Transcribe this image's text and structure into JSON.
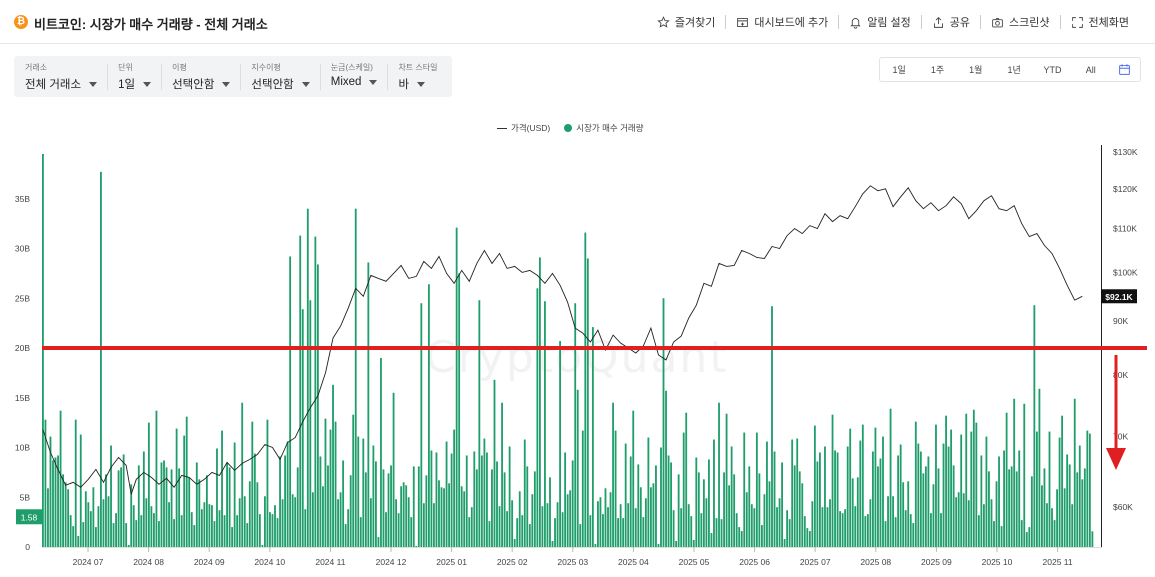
{
  "header": {
    "title": "비트코인: 시장가 매수 거래량 - 전체 거래소",
    "coin_icon": "₿",
    "actions": [
      {
        "label": "즐겨찾기",
        "icon": "star-icon"
      },
      {
        "label": "대시보드에 추가",
        "icon": "dashboard-add-icon"
      },
      {
        "label": "알림 설정",
        "icon": "bell-icon"
      },
      {
        "label": "공유",
        "icon": "share-icon"
      },
      {
        "label": "스크린샷",
        "icon": "camera-icon"
      },
      {
        "label": "전체화면",
        "icon": "fullscreen-icon"
      }
    ]
  },
  "filters": [
    {
      "label": "거래소",
      "value": "전체 거래소"
    },
    {
      "label": "단위",
      "value": "1일"
    },
    {
      "label": "이평",
      "value": "선택안함"
    },
    {
      "label": "지수이평",
      "value": "선택안함"
    },
    {
      "label": "눈금(스케일)",
      "value": "Mixed"
    },
    {
      "label": "차트 스타일",
      "value": "바"
    }
  ],
  "ranges": [
    "1일",
    "1주",
    "1월",
    "1년",
    "YTD",
    "All"
  ],
  "legend": {
    "price": "가격(USD)",
    "volume": "시장가 매수 거래량"
  },
  "watermark": "CryptoQuant",
  "colors": {
    "bar": "#1f9d6b",
    "price_line": "#222222",
    "overlay_line": "#e02020",
    "arrow": "#e02020"
  },
  "chart_data": {
    "type": "bar",
    "x_ticks": [
      "2024 07",
      "2024 08",
      "2024 09",
      "2024 10",
      "2024 11",
      "2024 12",
      "2025 01",
      "2025 02",
      "2025 03",
      "2025 04",
      "2025 05",
      "2025 06",
      "2025 07",
      "2025 08",
      "2025 09",
      "2025 10",
      "2025 11"
    ],
    "left_axis": {
      "ticks": [
        "0",
        "5B",
        "10B",
        "15B",
        "20B",
        "25B",
        "30B",
        "35B"
      ],
      "range": [
        0,
        39.5
      ]
    },
    "right_axis": {
      "ticks": [
        "$60K",
        "70K",
        "80K",
        "90K",
        "$100K",
        "$110K",
        "$120K",
        "$130K"
      ],
      "scale": "log",
      "range": [
        55000,
        130000
      ]
    },
    "current_volume_label": "1.58",
    "current_price_label": "$92.1K",
    "horizontal_line_value": 20,
    "price_path": [
      [
        0,
        11.8
      ],
      [
        3,
        9.5
      ],
      [
        6,
        7.8
      ],
      [
        9,
        6.2
      ],
      [
        12,
        6.5
      ],
      [
        15,
        6.0
      ],
      [
        18,
        6.8
      ],
      [
        21,
        7.8
      ],
      [
        24,
        6.5
      ],
      [
        27,
        8.0
      ],
      [
        30,
        9.0
      ],
      [
        33,
        8.2
      ],
      [
        35,
        5.3
      ],
      [
        37,
        6.8
      ],
      [
        40,
        7.5
      ],
      [
        43,
        7.0
      ],
      [
        46,
        6.3
      ],
      [
        49,
        6.9
      ],
      [
        52,
        6.0
      ],
      [
        55,
        7.2
      ],
      [
        58,
        7.0
      ],
      [
        61,
        6.3
      ],
      [
        64,
        6.8
      ],
      [
        67,
        7.5
      ],
      [
        70,
        7.2
      ],
      [
        73,
        8.5
      ],
      [
        76,
        7.7
      ],
      [
        79,
        8.4
      ],
      [
        82,
        8.8
      ],
      [
        85,
        9.3
      ],
      [
        88,
        10.3
      ],
      [
        91,
        10.0
      ],
      [
        94,
        8.8
      ],
      [
        97,
        10.5
      ],
      [
        100,
        11.0
      ],
      [
        103,
        12.6
      ],
      [
        106,
        14.0
      ],
      [
        109,
        15.2
      ],
      [
        112,
        17.5
      ],
      [
        115,
        21.0
      ],
      [
        118,
        22.2
      ],
      [
        121,
        24.0
      ],
      [
        124,
        26.0
      ],
      [
        127,
        25.2
      ],
      [
        130,
        27.3
      ],
      [
        133,
        27.0
      ],
      [
        136,
        26.7
      ],
      [
        139,
        27.5
      ],
      [
        142,
        28.3
      ],
      [
        145,
        27.0
      ],
      [
        148,
        27.2
      ],
      [
        151,
        28.7
      ],
      [
        154,
        28.0
      ],
      [
        157,
        29.2
      ],
      [
        160,
        27.5
      ],
      [
        163,
        26.5
      ],
      [
        166,
        27.8
      ],
      [
        169,
        26.7
      ],
      [
        172,
        28.5
      ],
      [
        175,
        29.8
      ],
      [
        178,
        28.5
      ],
      [
        181,
        29.5
      ],
      [
        184,
        28.0
      ],
      [
        187,
        28.2
      ],
      [
        190,
        27.6
      ],
      [
        193,
        27.8
      ],
      [
        196,
        27.3
      ],
      [
        199,
        26.5
      ],
      [
        202,
        27.5
      ],
      [
        205,
        26.3
      ],
      [
        208,
        24.6
      ],
      [
        211,
        22.0
      ],
      [
        214,
        21.5
      ],
      [
        217,
        20.6
      ],
      [
        220,
        21.8
      ],
      [
        223,
        19.8
      ],
      [
        226,
        21.3
      ],
      [
        229,
        20.5
      ],
      [
        232,
        20.0
      ],
      [
        235,
        19.5
      ],
      [
        238,
        20.2
      ],
      [
        241,
        22.0
      ],
      [
        244,
        19.3
      ],
      [
        247,
        18.8
      ],
      [
        250,
        20.6
      ],
      [
        253,
        21.2
      ],
      [
        256,
        23.0
      ],
      [
        259,
        24.3
      ],
      [
        262,
        26.5
      ],
      [
        265,
        26.2
      ],
      [
        268,
        28.5
      ],
      [
        271,
        28.2
      ],
      [
        274,
        28.3
      ],
      [
        277,
        29.8
      ],
      [
        280,
        29.5
      ],
      [
        283,
        29.1
      ],
      [
        286,
        29.0
      ],
      [
        289,
        30.2
      ],
      [
        292,
        30.0
      ],
      [
        295,
        31.3
      ],
      [
        298,
        32.0
      ],
      [
        301,
        31.5
      ],
      [
        304,
        32.3
      ],
      [
        307,
        32.0
      ],
      [
        310,
        33.5
      ],
      [
        313,
        32.7
      ],
      [
        316,
        33.3
      ],
      [
        319,
        33.0
      ],
      [
        322,
        34.2
      ],
      [
        325,
        35.5
      ],
      [
        328,
        36.3
      ],
      [
        331,
        35.8
      ],
      [
        334,
        36.0
      ],
      [
        337,
        34.2
      ],
      [
        340,
        35.2
      ],
      [
        343,
        36.1
      ],
      [
        346,
        34.8
      ],
      [
        349,
        34.0
      ],
      [
        352,
        34.6
      ],
      [
        355,
        33.8
      ],
      [
        358,
        34.3
      ],
      [
        361,
        35.2
      ],
      [
        364,
        34.5
      ],
      [
        367,
        33.0
      ],
      [
        370,
        33.8
      ],
      [
        373,
        34.8
      ],
      [
        376,
        35.3
      ],
      [
        379,
        34.0
      ],
      [
        382,
        33.8
      ],
      [
        385,
        34.3
      ],
      [
        388,
        32.5
      ],
      [
        391,
        31.2
      ],
      [
        394,
        31.5
      ],
      [
        397,
        30.3
      ],
      [
        400,
        29.5
      ],
      [
        403,
        28.0
      ],
      [
        406,
        26.3
      ],
      [
        409,
        24.8
      ],
      [
        412,
        25.2
      ]
    ],
    "volume_bars": [
      10.7,
      12.8,
      5.9,
      11.1,
      8.7,
      9.0,
      9.2,
      13.7,
      7.3,
      6.5,
      5.8,
      3.2,
      2.1,
      12.8,
      1.1,
      11.3,
      2.5,
      5.6,
      4.5,
      3.6,
      6.0,
      2.0,
      4.1,
      6.7,
      4.8,
      7.3,
      5.1,
      10.2,
      2.4,
      3.4,
      7.7,
      8.0,
      9.3,
      2.4,
      0.2,
      6.3,
      4.2,
      2.7,
      8.2,
      3.2,
      9.6,
      4.9,
      12.5,
      4.1,
      3.4,
      13.7,
      2.6,
      8.5,
      8.7,
      8.0,
      4.5,
      7.8,
      2.8,
      11.9,
      7.9,
      3.2,
      4.0,
      13.1,
      7.0,
      3.5,
      2.2,
      8.5,
      6.8,
      3.8,
      4.5,
      7.2,
      4.3,
      4.2,
      2.6,
      9.9,
      3.7,
      11.7,
      3.2,
      6.2,
      8.0,
      2.0,
      10.5,
      3.2,
      4.9,
      14.5,
      5.1,
      2.4,
      6.6,
      12.6,
      9.4,
      6.5,
      3.3,
      0.2,
      5.1,
      12.8,
      3.5,
      3.3,
      4.2,
      2.9,
      9.1,
      4.8,
      9.2,
      11.1,
      5.2,
      5.3,
      5.0,
      8.0,
      6.2,
      8.5,
      3.8,
      6.9,
      6.8,
      5.5,
      3.9,
      2.9,
      9.1,
      6.1,
      12.9,
      8.2,
      11.8,
      16.3,
      12.6,
      4.8,
      5.5,
      8.7,
      2.3,
      3.8,
      7.2,
      13.3,
      9.8,
      11.1,
      3.0,
      10.9,
      7.5,
      3.2,
      4.9,
      10.2,
      8.6,
      1.0,
      1.2,
      7.8,
      3.5,
      7.4,
      8.2,
      15.5,
      4.8,
      3.4,
      6.1,
      6.5,
      6.2,
      5.0,
      3.0,
      8.1,
      0.1,
      8.1,
      2.4,
      4.4,
      7.2,
      10.5,
      9.7,
      4.4,
      9.5,
      6.7,
      6.0,
      5.9,
      10.6,
      6.4,
      9.4,
      11.8,
      12.1,
      4.5,
      6.1,
      5.6,
      9.2,
      3.0,
      4.0,
      9.6,
      7.8,
      8.9,
      9.2,
      10.9,
      9.5,
      2.6,
      7.8,
      4.0,
      8.6,
      4.1,
      14.5,
      7.5,
      3.6,
      10.1,
      4.7,
      0.8,
      2.9,
      5.6,
      3.2,
      10.8,
      8.1,
      2.3,
      5.3,
      7.6,
      4.5,
      6.9,
      4.1,
      3.4,
      4.4,
      7.0,
      0.6,
      2.9,
      4.5,
      13.4,
      3.5,
      9.5,
      5.3,
      5.7,
      8.7,
      8.9,
      4.9,
      2.3,
      11.7,
      2.3,
      9.6,
      3.2,
      3.6,
      0.3,
      4.6,
      5.0,
      3.3,
      5.9,
      4.0,
      5.5,
      5.7,
      11.7,
      2.9,
      4.3,
      2.9,
      10.4,
      4.4,
      9.1,
      13.7,
      3.9,
      8.3,
      6.0,
      3.0,
      4.9,
      11.0,
      6.0,
      6.4,
      8.2,
      0.3,
      10.0,
      11.1,
      9.8,
      9.2,
      8.5,
      3.7,
      0.6,
      7.3,
      3.9,
      11.5,
      3.9,
      4.3,
      3.1,
      0.7,
      9.0,
      7.5,
      3.4,
      6.8,
      4.9,
      8.8,
      1.4,
      10.8,
      2.9,
      14.5,
      2.8,
      7.5,
      13.4,
      6.2,
      10.1,
      7.3,
      3.4,
      2.0,
      1.6,
      11.5,
      5.5,
      8.1,
      4.3,
      3.9,
      11.5,
      7.4,
      2.2,
      5.3,
      10.6,
      6.6,
      7.3,
      9.6,
      4.0,
      4.9,
      8.5,
      0.8,
      3.7,
      2.8,
      10.8,
      8.2,
      10.9,
      7.6,
      6.4,
      3.1,
      1.9,
      1.6,
      4.6,
      12.2,
      8.6,
      9.5,
      4.0,
      10.1,
      4.0,
      4.8,
      13.3,
      9.7,
      9.5,
      3.6,
      3.4,
      3.8,
      10.1,
      11.9,
      6.9,
      4.1,
      7.0,
      10.7,
      12.3,
      3.1,
      3.3,
      4.8,
      9.6,
      12.0,
      8.1,
      8.9,
      11.1,
      2.6,
      5.1,
      11.9,
      5.1,
      3.0,
      9.2,
      10.3,
      6.5,
      3.7,
      6.6,
      3.3,
      2.4,
      12.6,
      10.4,
      9.6,
      7.4,
      8.1,
      9.1,
      3.4,
      6.3,
      12.3,
      7.9,
      3.4,
      10.4,
      1.3,
      10.1,
      11.8,
      8.2,
      5.0,
      5.5,
      11.3,
      5.4,
      13.4,
      4.7,
      11.6,
      13.8,
      12.5,
      3.2,
      9.2,
      4.3,
      11.1,
      7.6,
      4.8,
      2.6,
      6.6,
      9.1,
      2.1,
      9.7,
      13.5,
      7.8,
      8.1,
      14.9,
      7.6,
      9.7,
      2.7,
      14.4,
      1.5,
      2.0,
      7.1,
      4.1,
      11.6,
      8.7,
      6.2,
      7.9,
      4.4,
      11.6,
      3.9,
      2.7,
      5.8,
      11.0,
      13.2,
      5.9,
      9.3,
      8.3,
      4.3,
      14.9,
      7.5,
      10.2,
      6.8,
      7.9,
      11.7,
      11.4,
      1.58
    ],
    "volume_spikes": [
      [
        0,
        39.5
      ],
      [
        23,
        37.7
      ],
      [
        56,
        11.2
      ],
      [
        73,
        8.5
      ],
      [
        97,
        10.6
      ],
      [
        98,
        29.2
      ],
      [
        102,
        31.3
      ],
      [
        103,
        23.9
      ],
      [
        105,
        34.0
      ],
      [
        106,
        24.8
      ],
      [
        108,
        31.2
      ],
      [
        109,
        28.4
      ],
      [
        124,
        34.0
      ],
      [
        129,
        28.6
      ],
      [
        134,
        19.0
      ],
      [
        150,
        24.5
      ],
      [
        153,
        26.4
      ],
      [
        164,
        32.1
      ],
      [
        165,
        27.5
      ],
      [
        173,
        24.8
      ],
      [
        179,
        16.8
      ],
      [
        196,
        26.0
      ],
      [
        197,
        29.1
      ],
      [
        199,
        24.7
      ],
      [
        205,
        20.7
      ],
      [
        211,
        24.5
      ],
      [
        212,
        15.8
      ],
      [
        215,
        31.6
      ],
      [
        216,
        29.0
      ],
      [
        218,
        22.1
      ],
      [
        226,
        14.5
      ],
      [
        246,
        25.0
      ],
      [
        247,
        15.7
      ],
      [
        255,
        13.5
      ],
      [
        289,
        24.2
      ],
      [
        336,
        13.9
      ],
      [
        358,
        13.2
      ],
      [
        393,
        24.3
      ],
      [
        395,
        15.9
      ]
    ]
  }
}
